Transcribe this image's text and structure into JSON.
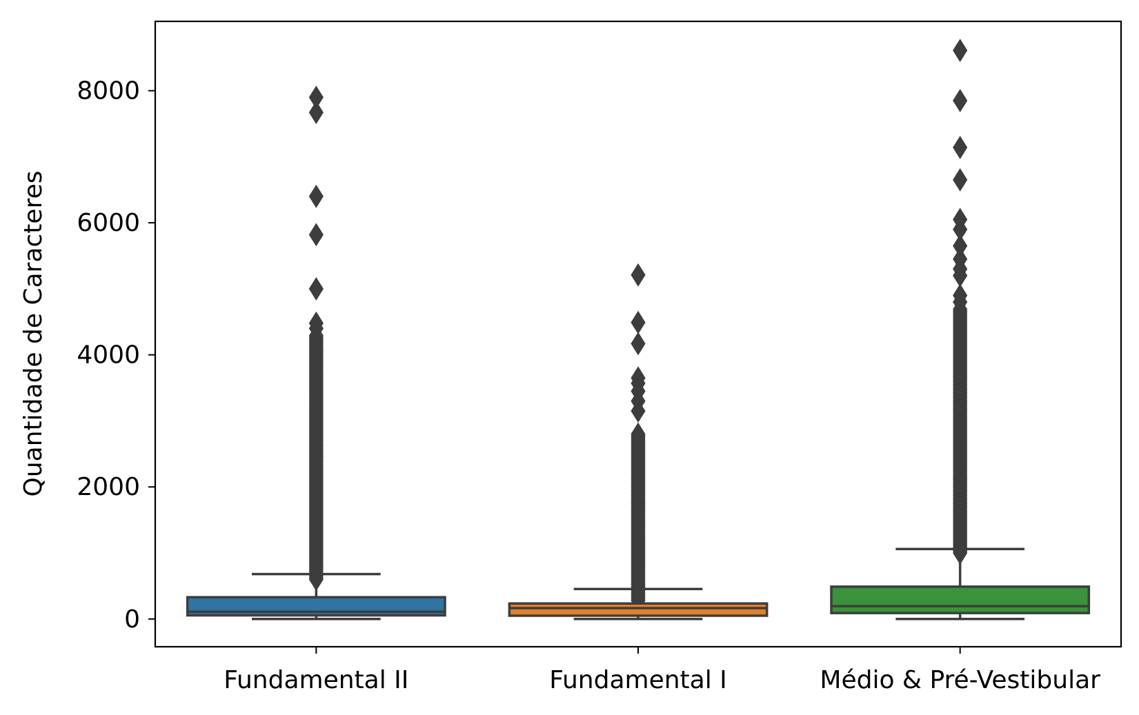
{
  "chart_data": {
    "type": "box",
    "title": "",
    "xlabel": "",
    "ylabel": "Quantidade de Caracteres",
    "ylim": [
      -420,
      9050
    ],
    "yticks": [
      0,
      2000,
      4000,
      6000,
      8000
    ],
    "grid": false,
    "categories": [
      "Fundamental II",
      "Fundamental I",
      "Médio & Pré-Vestibular"
    ],
    "series": [
      {
        "category": "Fundamental II",
        "color": "#3274a1",
        "whisker_low": 0,
        "q1": 55,
        "median": 110,
        "q3": 330,
        "whisker_high": 680,
        "outlier_range": [
          600,
          4300
        ],
        "outliers": [
          4400,
          4480,
          5000,
          5820,
          6400,
          7670,
          7900
        ]
      },
      {
        "category": "Fundamental I",
        "color": "#e1812c",
        "whisker_low": 0,
        "q1": 50,
        "median": 165,
        "q3": 235,
        "whisker_high": 455,
        "outlier_range": [
          280,
          2800
        ],
        "outliers": [
          3150,
          3300,
          3450,
          3570,
          3650,
          4170,
          4490,
          5210
        ]
      },
      {
        "category": "Médio & Pré-Vestibular",
        "color": "#3a923a",
        "whisker_low": 0,
        "q1": 90,
        "median": 195,
        "q3": 490,
        "whisker_high": 1060,
        "outlier_range": [
          1000,
          4700
        ],
        "outliers": [
          4800,
          4900,
          5200,
          5300,
          5450,
          5650,
          5900,
          6050,
          6650,
          7140,
          7850,
          8610
        ]
      }
    ]
  }
}
